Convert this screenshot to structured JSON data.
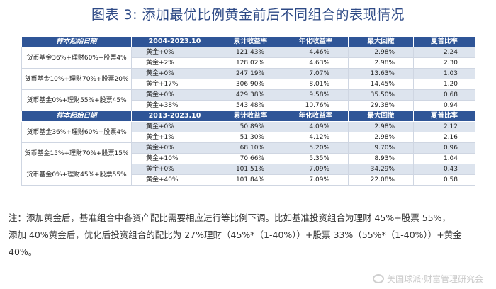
{
  "title": "图表 3:  添加最优比例黄金前后不同组合的表现情况",
  "headers": {
    "p1": [
      "样本起始日期",
      "2004-2023.10",
      "累计收益率",
      "年化收益率",
      "最大回撤",
      "夏普比率"
    ],
    "p2": [
      "样本起始日期",
      "2013-2023.10",
      "累计收益率",
      "年化收益率",
      "最大回撤",
      "夏普比率"
    ]
  },
  "groups": {
    "g1": "货币基金36%+理财60%+股票4%",
    "g2": "货币基金10%+理财70%+股票20%",
    "g3": "货币基金0%+理财55%+股票45%",
    "g4": "货币基金36%+理财60%+股票4%",
    "g5": "货币基金15%+理财70%+股票15%",
    "g6": "货币基金0%+理财45%+股票55%"
  },
  "rows": {
    "r1": [
      "黄金+0%",
      "121.43%",
      "4.46%",
      "2.98%",
      "2.24"
    ],
    "r2": [
      "黄金+2%",
      "128.02%",
      "4.63%",
      "2.98%",
      "2.30"
    ],
    "r3": [
      "黄金+0%",
      "247.19%",
      "7.07%",
      "13.63%",
      "1.03"
    ],
    "r4": [
      "黄金+17%",
      "306.90%",
      "8.01%",
      "14.45%",
      "1.20"
    ],
    "r5": [
      "黄金+0%",
      "429.38%",
      "9.58%",
      "35.50%",
      "0.68"
    ],
    "r6": [
      "黄金+38%",
      "543.48%",
      "10.76%",
      "29.38%",
      "0.94"
    ],
    "r7": [
      "黄金+0%",
      "50.89%",
      "4.09%",
      "2.98%",
      "2.12"
    ],
    "r8": [
      "黄金+1%",
      "51.30%",
      "4.12%",
      "2.98%",
      "2.16"
    ],
    "r9": [
      "黄金+0%",
      "68.10%",
      "5.20%",
      "9.70%",
      "0.96"
    ],
    "r10": [
      "黄金+10%",
      "70.66%",
      "5.35%",
      "8.93%",
      "1.04"
    ],
    "r11": [
      "黄金+0%",
      "101.51%",
      "7.09%",
      "34.29%",
      "0.43"
    ],
    "r12": [
      "黄金+40%",
      "101.84%",
      "7.09%",
      "22.08%",
      "0.58"
    ]
  },
  "notes": {
    "line1": "注：添加黄金后，基准组合中各资产配比需要相应进行等比例下调。比如基准投资组合为理财 45%+股票 55%，",
    "line2": "添加 40%黄金后，优化后投资组合的配比为 27%理财（45%*（1-40%））+股票 33%（55%*（1-40%））+黄金",
    "line3": "40%。"
  },
  "watermark": "美国球派·财富管理研究会"
}
